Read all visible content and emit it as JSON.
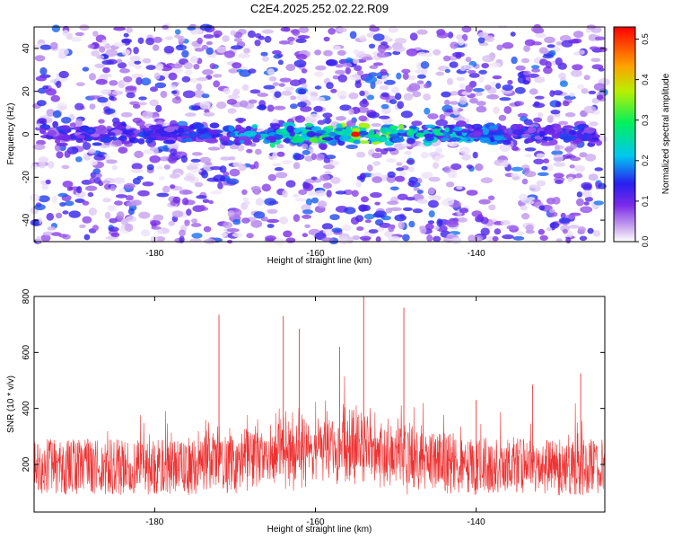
{
  "title": "C2E4.2025.252.02.22.R09",
  "colors": {
    "line": "#ee3333",
    "axis": "#000000",
    "background": "#ffffff"
  },
  "chart_data": [
    {
      "type": "heatmap",
      "xlabel": "Height of straight line (km)",
      "ylabel": "Frequency (Hz)",
      "xlim": [
        -195,
        -124
      ],
      "ylim": [
        -50,
        50
      ],
      "xticks": [
        -180,
        -160,
        -140
      ],
      "yticks": [
        -40,
        -20,
        0,
        20,
        40
      ],
      "colorbar": {
        "label": "Normalized spectral amplitude",
        "range": [
          0.0,
          0.53
        ],
        "ticks": [
          0.0,
          0.1,
          0.2,
          0.3,
          0.4,
          0.5
        ],
        "colormap": "rainbow (white-violet-blue-cyan-green-yellow-red)"
      },
      "band": {
        "center_frequency_hz": 0,
        "half_width_hz": 5,
        "peak_height_km": -155,
        "peak_amplitude": 0.52
      }
    },
    {
      "type": "line",
      "xlabel": "Height of straight line (km)",
      "ylabel": "SNR (10 * v/v)",
      "xlim": [
        -195,
        -124
      ],
      "ylim": [
        30,
        800
      ],
      "xticks": [
        -180,
        -160,
        -140
      ],
      "yticks": [
        200,
        400,
        600,
        800
      ],
      "baseline_snr": 190,
      "spikes": [
        {
          "x": -172,
          "y": 735
        },
        {
          "x": -164,
          "y": 730
        },
        {
          "x": -162,
          "y": 685
        },
        {
          "x": -157,
          "y": 620
        },
        {
          "x": -154,
          "y": 800
        },
        {
          "x": -149,
          "y": 760
        },
        {
          "x": -140,
          "y": 430
        },
        {
          "x": -133,
          "y": 485
        },
        {
          "x": -127,
          "y": 525
        }
      ]
    }
  ]
}
